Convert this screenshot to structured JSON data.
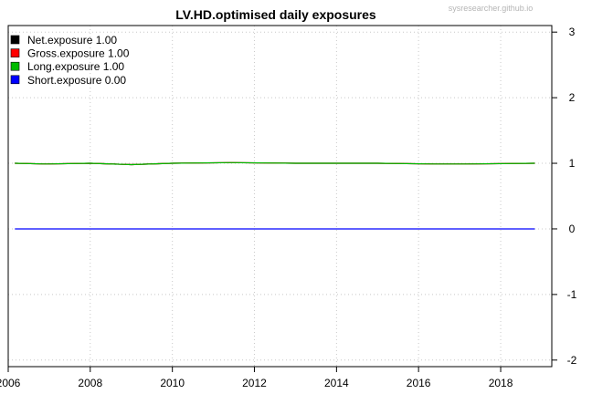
{
  "chart_data": {
    "type": "line",
    "title": "LV.HD.optimised daily exposures",
    "watermark": "sysresearcher.github.io",
    "xlabel": "",
    "ylabel": "",
    "x_ticks": [
      "2006",
      "2008",
      "2010",
      "2012",
      "2014",
      "2016",
      "2018"
    ],
    "y_ticks": [
      "-2",
      "-1",
      "0",
      "1",
      "2",
      "3"
    ],
    "xlim": [
      "2006-01-01",
      "2019-04-01"
    ],
    "ylim": [
      -2.1,
      3.1
    ],
    "x_start": "2006-03-01",
    "x_end": "2018-11-01",
    "grid": true,
    "y_axis_side": "right",
    "legend_position": "top-left",
    "series": [
      {
        "name": "Net.exposure",
        "legend_label": "Net.exposure 1.00",
        "color": "#000000",
        "x": [
          "2006-03-01",
          "2006-12-01",
          "2008-01-01",
          "2009-01-01",
          "2010-01-01",
          "2011-06-01",
          "2013-01-01",
          "2015-01-01",
          "2016-06-01",
          "2017-03-01",
          "2018-11-01"
        ],
        "values": [
          1.0,
          0.99,
          1.0,
          0.98,
          1.0,
          1.01,
          1.0,
          1.0,
          0.99,
          0.99,
          1.0
        ]
      },
      {
        "name": "Gross.exposure",
        "legend_label": "Gross.exposure 1.00",
        "color": "#ff0000",
        "x": [
          "2006-03-01",
          "2006-12-01",
          "2008-01-01",
          "2009-01-01",
          "2010-01-01",
          "2011-06-01",
          "2013-01-01",
          "2015-01-01",
          "2016-06-01",
          "2017-03-01",
          "2018-11-01"
        ],
        "values": [
          1.0,
          0.99,
          1.0,
          0.98,
          1.0,
          1.01,
          1.0,
          1.0,
          0.99,
          0.99,
          1.0
        ]
      },
      {
        "name": "Long.exposure",
        "legend_label": "Long.exposure 1.00",
        "color": "#00bb00",
        "x": [
          "2006-03-01",
          "2006-12-01",
          "2008-01-01",
          "2009-01-01",
          "2010-01-01",
          "2011-06-01",
          "2013-01-01",
          "2015-01-01",
          "2016-06-01",
          "2017-03-01",
          "2018-11-01"
        ],
        "values": [
          1.0,
          0.99,
          1.0,
          0.98,
          1.0,
          1.01,
          1.0,
          1.0,
          0.99,
          0.99,
          1.0
        ]
      },
      {
        "name": "Short.exposure",
        "legend_label": "Short.exposure 0.00",
        "color": "#0000ff",
        "x": [
          "2006-03-01",
          "2018-11-01"
        ],
        "values": [
          0.0,
          0.0
        ]
      }
    ]
  }
}
